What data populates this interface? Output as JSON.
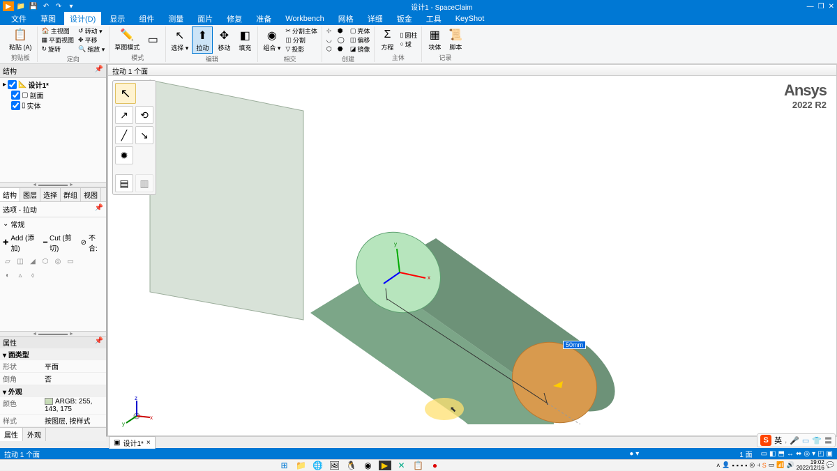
{
  "title": "设计1 - SpaceClaim",
  "menu": [
    "文件",
    "草图",
    "设计(D)",
    "显示",
    "组件",
    "测量",
    "面片",
    "修复",
    "准备",
    "Workbench",
    "网格",
    "详细",
    "钣金",
    "工具",
    "KeyShot"
  ],
  "active_menu": 2,
  "ribbon": {
    "groups": [
      {
        "label": "剪贴板",
        "big": [
          {
            "t": "粘贴 (A)",
            "i": "📋"
          }
        ]
      },
      {
        "label": "定向",
        "cols": [
          [
            {
              "t": "主视图",
              "i": "🏠"
            },
            {
              "t": "平面视图",
              "i": "▦"
            },
            {
              "t": "旋转",
              "i": "↻"
            }
          ],
          [
            {
              "t": "转动 ▾",
              "i": "↺"
            },
            {
              "t": "平移",
              "i": "✥"
            },
            {
              "t": "缩放 ▾",
              "i": "🔍"
            }
          ]
        ]
      },
      {
        "label": "模式",
        "big": [
          {
            "t": "草图模式",
            "i": "✏️"
          },
          {
            "t": "",
            "i": "▭"
          }
        ]
      },
      {
        "label": "编辑",
        "big": [
          {
            "t": "选择 ▾",
            "i": "↖"
          },
          {
            "t": "拉动",
            "i": "⬆",
            "active": true
          },
          {
            "t": "移动",
            "i": "✥"
          },
          {
            "t": "填充",
            "i": "◧"
          }
        ],
        "sm": []
      },
      {
        "label": "相交",
        "big": [
          {
            "t": "组合 ▾",
            "i": "◉"
          }
        ],
        "cols": [
          [
            {
              "t": "分割主体",
              "i": "✂"
            },
            {
              "t": "分割",
              "i": "◫"
            },
            {
              "t": "投影",
              "i": "▽"
            }
          ]
        ]
      },
      {
        "label": "创建",
        "cols": [
          [
            {
              "t": "",
              "i": "⊹"
            },
            {
              "t": "",
              "i": "◡"
            },
            {
              "t": "",
              "i": "⬡"
            }
          ],
          [
            {
              "t": "",
              "i": "⬢"
            },
            {
              "t": "",
              "i": "◯"
            },
            {
              "t": "",
              "i": "⬣"
            }
          ],
          [
            {
              "t": "壳体",
              "i": "▢"
            },
            {
              "t": "偏移",
              "i": "◫"
            },
            {
              "t": "镜像",
              "i": "◪"
            }
          ]
        ]
      },
      {
        "label": "主体",
        "big": [
          {
            "t": "方程",
            "i": "Σ"
          }
        ],
        "cols": [
          [
            {
              "t": "圆柱",
              "i": "▯"
            },
            {
              "t": "球",
              "i": "○"
            }
          ]
        ]
      },
      {
        "label": "记录",
        "big": [
          {
            "t": "块体",
            "i": "▦"
          },
          {
            "t": "脚本",
            "i": "📜"
          }
        ]
      }
    ]
  },
  "left": {
    "struct_hdr": "结构",
    "tree": [
      {
        "t": "设计1*",
        "ic": "📐",
        "chk": true,
        "bold": true
      },
      {
        "t": "剖面",
        "ic": "▢",
        "chk": true,
        "indent": true
      },
      {
        "t": "实体",
        "ic": "▯",
        "chk": true,
        "indent": true
      }
    ],
    "tabs": [
      "结构",
      "图层",
      "选择",
      "群组",
      "视图"
    ],
    "opt_hdr": "选项 - 拉动",
    "opt_general": "常规",
    "add": "Add (添加)",
    "cut": "Cut (剪切)",
    "nomerge": "不合:",
    "prop_hdr": "属性",
    "cat1": "面类型",
    "r1": [
      "形状",
      "平面"
    ],
    "r2": [
      "倒角",
      "否"
    ],
    "cat2": "外观",
    "r3": [
      "颜色",
      "ARGB: 255, 143, 175"
    ],
    "r4": [
      "样式",
      "按图层, 按样式"
    ],
    "btabs": [
      "属性",
      "外观"
    ]
  },
  "viewport": {
    "top": "拉动 1 个面",
    "dim": "50mm",
    "wm1": "Ansys",
    "wm2": "2022 R2",
    "scene_colors": {
      "plane_fill": "#d8e2d8",
      "plane_stroke": "#9aac9a",
      "cyl_body": "#7fa488",
      "cyl_top": "#b7e5bd",
      "cyl_bot": "#d89a4e"
    }
  },
  "doc_tab": "设计1*",
  "status": {
    "left": "拉动 1 个面",
    "mid": "1 面"
  },
  "ime": "英",
  "time": "19:02",
  "date": "2022/12/16"
}
